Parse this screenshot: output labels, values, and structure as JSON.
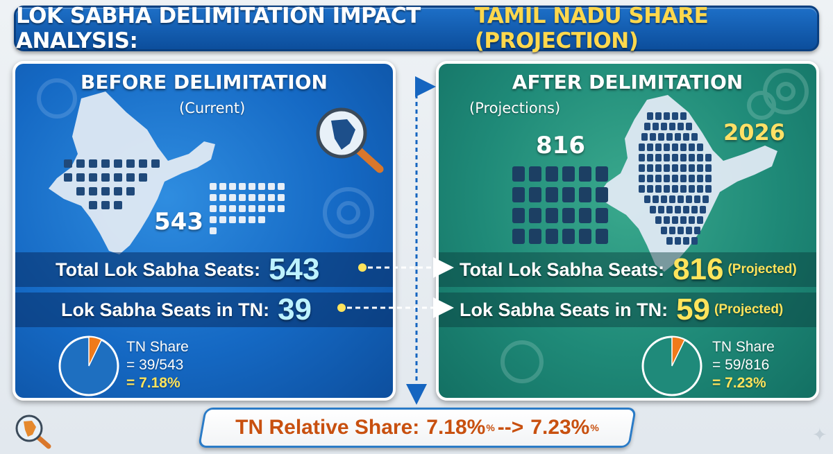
{
  "title": {
    "main": "LOK SABHA DELIMITATION IMPACT ANALYSIS:",
    "accent": "TAMIL NADU SHARE (PROJECTION)"
  },
  "before": {
    "heading": "BEFORE DELIMITATION",
    "sub": "(Current)",
    "big_number": "543",
    "total_label": "Total Lok Sabha Seats:",
    "total_value": "543",
    "tn_label": "Lok Sabha Seats in TN:",
    "tn_value": "39",
    "share_title": "TN Share",
    "share_fraction": "= 39/543",
    "share_percent": "= 7.18%",
    "share_ratio": 0.0718
  },
  "after": {
    "heading": "AFTER DELIMITATION",
    "sub": "(Projections)",
    "big_number": "816",
    "year": "2026",
    "total_label": "Total Lok Sabha Seats:",
    "total_value": "816",
    "total_note": "(Projected)",
    "tn_label": "Lok Sabha Seats in TN:",
    "tn_value": "59",
    "tn_note": "(Projected)",
    "share_title": "TN Share",
    "share_fraction": "= 59/816",
    "share_percent": "= 7.23%",
    "share_ratio": 0.0723
  },
  "summary": {
    "label": "TN Relative Share:",
    "from": "7.18%",
    "arrow": "-->",
    "to": "7.23%",
    "sup": "%"
  },
  "colors": {
    "title_blue": "#1565c0",
    "accent_yellow": "#ffd84d",
    "pie_orange": "#f07a1a",
    "left_pie": "#1e6fc0",
    "right_pie": "#1f8a7a",
    "summary_orange": "#c8500f"
  },
  "icons": [
    "magnifier-icon",
    "gear-icon",
    "india-map-icon",
    "ballot-box-icon",
    "sparkle-icon"
  ]
}
